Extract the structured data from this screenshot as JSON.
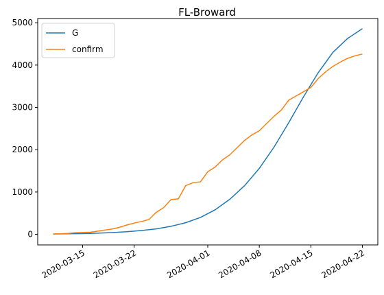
{
  "chart_data": {
    "type": "line",
    "title": "FL-Broward",
    "xlabel": "",
    "ylabel": "",
    "x_axis": {
      "type": "date",
      "start": "2020-03-11",
      "end": "2020-04-22",
      "ticks": [
        "2020-03-15",
        "2020-03-22",
        "2020-04-01",
        "2020-04-08",
        "2020-04-15",
        "2020-04-22"
      ]
    },
    "ylim": [
      -250,
      5100
    ],
    "yticks": [
      0,
      1000,
      2000,
      3000,
      4000,
      5000
    ],
    "grid": false,
    "legend": "top-left",
    "series": [
      {
        "name": "G",
        "color": "#1f77b4",
        "x": [
          "2020-03-11",
          "2020-03-13",
          "2020-03-15",
          "2020-03-17",
          "2020-03-19",
          "2020-03-21",
          "2020-03-23",
          "2020-03-25",
          "2020-03-27",
          "2020-03-29",
          "2020-03-31",
          "2020-04-02",
          "2020-04-04",
          "2020-04-06",
          "2020-04-08",
          "2020-04-10",
          "2020-04-12",
          "2020-04-14",
          "2020-04-16",
          "2020-04-18",
          "2020-04-20",
          "2020-04-22"
        ],
        "values": [
          8,
          12,
          18,
          28,
          42,
          62,
          90,
          130,
          190,
          275,
          400,
          580,
          830,
          1150,
          1560,
          2060,
          2640,
          3250,
          3820,
          4300,
          4630,
          4860
        ]
      },
      {
        "name": "confirm",
        "color": "#ff7f0e",
        "x": [
          "2020-03-11",
          "2020-03-12",
          "2020-03-13",
          "2020-03-14",
          "2020-03-15",
          "2020-03-16",
          "2020-03-17",
          "2020-03-18",
          "2020-03-19",
          "2020-03-20",
          "2020-03-21",
          "2020-03-22",
          "2020-03-23",
          "2020-03-24",
          "2020-03-25",
          "2020-03-26",
          "2020-03-27",
          "2020-03-28",
          "2020-03-29",
          "2020-03-30",
          "2020-03-31",
          "2020-04-01",
          "2020-04-02",
          "2020-04-03",
          "2020-04-04",
          "2020-04-05",
          "2020-04-06",
          "2020-04-07",
          "2020-04-08",
          "2020-04-09",
          "2020-04-10",
          "2020-04-11",
          "2020-04-12",
          "2020-04-13",
          "2020-04-14",
          "2020-04-15",
          "2020-04-16",
          "2020-04-17",
          "2020-04-18",
          "2020-04-19",
          "2020-04-20",
          "2020-04-21",
          "2020-04-22"
        ],
        "values": [
          10,
          15,
          20,
          40,
          45,
          48,
          75,
          100,
          125,
          165,
          220,
          265,
          305,
          350,
          520,
          630,
          820,
          840,
          1150,
          1220,
          1240,
          1480,
          1590,
          1760,
          1880,
          2050,
          2220,
          2350,
          2450,
          2620,
          2790,
          2940,
          3170,
          3270,
          3370,
          3470,
          3680,
          3840,
          3970,
          4070,
          4160,
          4220,
          4260
        ]
      }
    ]
  }
}
